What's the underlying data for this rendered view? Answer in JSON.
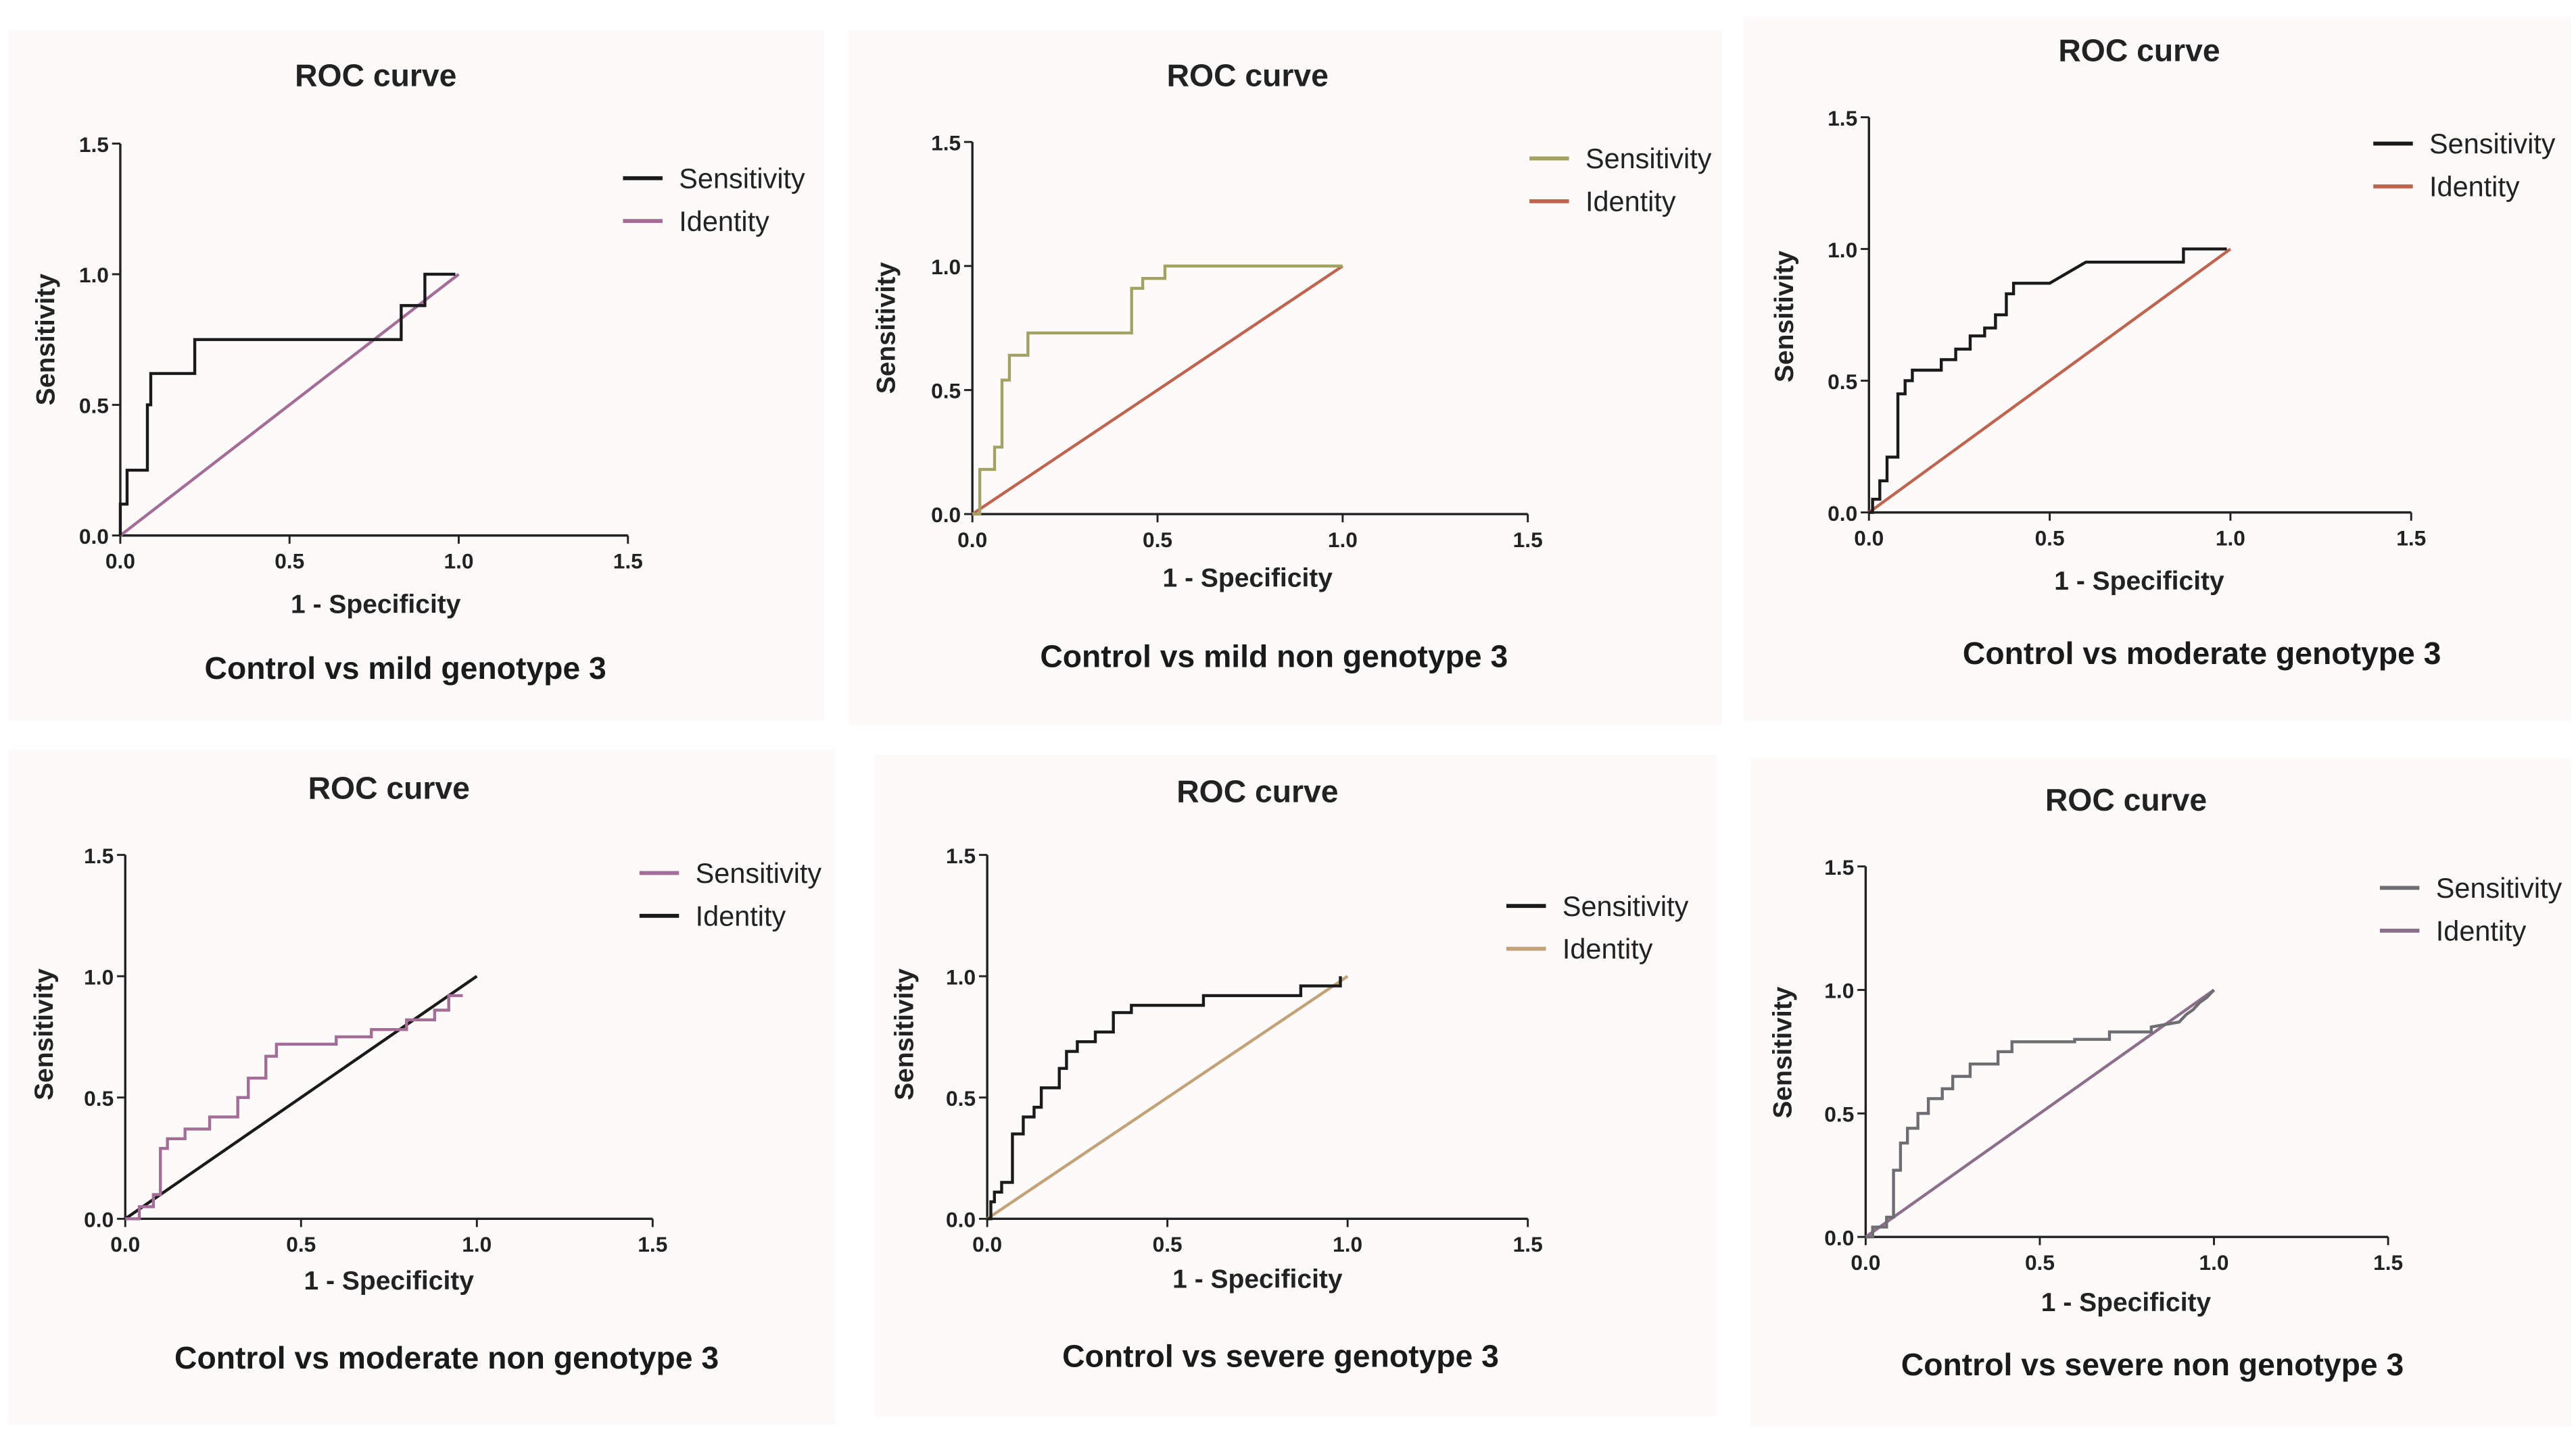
{
  "colors": {
    "black": "#1a1a1a",
    "olive": "#a2a263",
    "rust": "#c06450",
    "purple": "#a46d97",
    "mauve": "#8d6e8b",
    "tan": "#c4a277",
    "slate": "#6e6e72"
  },
  "chart_data": [
    {
      "type": "line",
      "title": "ROC curve",
      "xlabel": "1 - Specificity",
      "ylabel": "Sensitivity",
      "caption": "Control vs mild genotype 3",
      "xlim": [
        0,
        1.5
      ],
      "ylim": [
        0,
        1.5
      ],
      "xticks": [
        "0.0",
        "0.5",
        "1.0",
        "1.5"
      ],
      "yticks": [
        "0.0",
        "0.5",
        "1.0",
        "1.5"
      ],
      "legend_position": "top-right",
      "series": [
        {
          "name": "Sensitivity",
          "color": "#1a1a1a",
          "x": [
            0,
            0,
            0.02,
            0.02,
            0.08,
            0.08,
            0.09,
            0.09,
            0.22,
            0.22,
            0.83,
            0.83,
            0.85,
            0.85,
            0.9,
            0.9,
            0.99,
            0.99
          ],
          "y": [
            0,
            0.12,
            0.12,
            0.25,
            0.25,
            0.5,
            0.5,
            0.62,
            0.62,
            0.75,
            0.75,
            0.88,
            0.88,
            0.88,
            0.88,
            1.0,
            1.0,
            1.0
          ]
        },
        {
          "name": "Identity",
          "color": "#a46d97",
          "x": [
            0,
            1
          ],
          "y": [
            0,
            1
          ]
        }
      ]
    },
    {
      "type": "line",
      "title": "ROC curve",
      "xlabel": "1 - Specificity",
      "ylabel": "Sensitivity",
      "caption": "Control vs mild non genotype 3",
      "xlim": [
        0,
        1.5
      ],
      "ylim": [
        0,
        1.5
      ],
      "xticks": [
        "0.0",
        "0.5",
        "1.0",
        "1.5"
      ],
      "yticks": [
        "0.0",
        "0.5",
        "1.0",
        "1.5"
      ],
      "legend_position": "top-right",
      "series": [
        {
          "name": "Sensitivity",
          "color": "#a2a263",
          "x": [
            0,
            0.02,
            0.02,
            0.06,
            0.06,
            0.08,
            0.08,
            0.1,
            0.1,
            0.15,
            0.15,
            0.24,
            0.24,
            0.43,
            0.43,
            0.46,
            0.46,
            0.52,
            0.52,
            1.0
          ],
          "y": [
            0,
            0,
            0.18,
            0.18,
            0.27,
            0.27,
            0.54,
            0.54,
            0.64,
            0.64,
            0.73,
            0.73,
            0.73,
            0.73,
            0.91,
            0.91,
            0.95,
            0.95,
            1.0,
            1.0
          ]
        },
        {
          "name": "Identity",
          "color": "#c06450",
          "x": [
            0,
            1
          ],
          "y": [
            0,
            1
          ]
        }
      ]
    },
    {
      "type": "line",
      "title": "ROC curve",
      "xlabel": "1 - Specificity",
      "ylabel": "Sensitivity",
      "caption": "Control vs moderate genotype 3",
      "xlim": [
        0,
        1.5
      ],
      "ylim": [
        0,
        1.5
      ],
      "xticks": [
        "0.0",
        "0.5",
        "1.0",
        "1.5"
      ],
      "yticks": [
        "0.0",
        "0.5",
        "1.0",
        "1.5"
      ],
      "legend_position": "top-right",
      "series": [
        {
          "name": "Sensitivity",
          "color": "#1a1a1a",
          "x": [
            0,
            0.01,
            0.01,
            0.03,
            0.03,
            0.05,
            0.05,
            0.08,
            0.08,
            0.1,
            0.1,
            0.12,
            0.12,
            0.2,
            0.2,
            0.24,
            0.24,
            0.28,
            0.28,
            0.32,
            0.32,
            0.35,
            0.35,
            0.38,
            0.38,
            0.4,
            0.4,
            0.5,
            0.55,
            0.6,
            0.87,
            0.87,
            0.99
          ],
          "y": [
            0,
            0,
            0.05,
            0.05,
            0.12,
            0.12,
            0.21,
            0.21,
            0.45,
            0.45,
            0.5,
            0.5,
            0.54,
            0.54,
            0.58,
            0.58,
            0.62,
            0.62,
            0.67,
            0.67,
            0.7,
            0.7,
            0.75,
            0.75,
            0.83,
            0.83,
            0.87,
            0.87,
            0.91,
            0.95,
            0.95,
            1.0,
            1.0
          ]
        },
        {
          "name": "Identity",
          "color": "#c06450",
          "x": [
            0,
            1
          ],
          "y": [
            0,
            1
          ]
        }
      ]
    },
    {
      "type": "line",
      "title": "ROC curve",
      "xlabel": "1 - Specificity",
      "ylabel": "Sensitivity",
      "caption": "Control vs moderate non genotype 3",
      "xlim": [
        0,
        1.5
      ],
      "ylim": [
        0,
        1.5
      ],
      "xticks": [
        "0.0",
        "0.5",
        "1.0",
        "1.5"
      ],
      "yticks": [
        "0.0",
        "0.5",
        "1.0",
        "1.5"
      ],
      "legend_position": "top-right",
      "series": [
        {
          "name": "Sensitivity",
          "color": "#a46d97",
          "x": [
            0,
            0.04,
            0.04,
            0.08,
            0.08,
            0.1,
            0.1,
            0.12,
            0.12,
            0.17,
            0.17,
            0.24,
            0.24,
            0.32,
            0.32,
            0.35,
            0.35,
            0.4,
            0.4,
            0.43,
            0.43,
            0.6,
            0.6,
            0.7,
            0.7,
            0.8,
            0.8,
            0.88,
            0.88,
            0.92,
            0.92,
            0.96
          ],
          "y": [
            0,
            0,
            0.05,
            0.05,
            0.1,
            0.1,
            0.29,
            0.29,
            0.33,
            0.33,
            0.37,
            0.37,
            0.42,
            0.42,
            0.5,
            0.5,
            0.58,
            0.58,
            0.67,
            0.67,
            0.72,
            0.72,
            0.75,
            0.75,
            0.78,
            0.78,
            0.82,
            0.82,
            0.86,
            0.86,
            0.92,
            0.92
          ]
        },
        {
          "name": "Identity",
          "color": "#1a1a1a",
          "x": [
            0,
            1
          ],
          "y": [
            0,
            1
          ]
        }
      ]
    },
    {
      "type": "line",
      "title": "ROC curve",
      "xlabel": "1 - Specificity",
      "ylabel": "Sensitivity",
      "caption": "Control vs severe genotype 3",
      "xlim": [
        0,
        1.5
      ],
      "ylim": [
        0,
        1.5
      ],
      "xticks": [
        "0.0",
        "0.5",
        "1.0",
        "1.5"
      ],
      "yticks": [
        "0.0",
        "0.5",
        "1.0",
        "1.5"
      ],
      "legend_position": "top-right",
      "series": [
        {
          "name": "Sensitivity",
          "color": "#1a1a1a",
          "x": [
            0,
            0.01,
            0.01,
            0.02,
            0.02,
            0.04,
            0.04,
            0.07,
            0.07,
            0.1,
            0.1,
            0.13,
            0.13,
            0.15,
            0.15,
            0.2,
            0.2,
            0.22,
            0.22,
            0.25,
            0.25,
            0.3,
            0.3,
            0.35,
            0.35,
            0.4,
            0.4,
            0.6,
            0.6,
            0.87,
            0.87,
            0.98,
            0.98
          ],
          "y": [
            0,
            0,
            0.07,
            0.07,
            0.11,
            0.11,
            0.15,
            0.15,
            0.35,
            0.35,
            0.42,
            0.42,
            0.46,
            0.46,
            0.54,
            0.54,
            0.62,
            0.62,
            0.69,
            0.69,
            0.73,
            0.73,
            0.77,
            0.77,
            0.85,
            0.85,
            0.88,
            0.88,
            0.92,
            0.92,
            0.96,
            0.96,
            1.0
          ]
        },
        {
          "name": "Identity",
          "color": "#c4a277",
          "x": [
            0,
            1
          ],
          "y": [
            0,
            1
          ]
        }
      ]
    },
    {
      "type": "line",
      "title": "ROC curve",
      "xlabel": "1 - Specificity",
      "ylabel": "Sensitivity",
      "caption": "Control vs severe non genotype 3",
      "xlim": [
        0,
        1.5
      ],
      "ylim": [
        0,
        1.5
      ],
      "xticks": [
        "0.0",
        "0.5",
        "1.0",
        "1.5"
      ],
      "yticks": [
        "0.0",
        "0.5",
        "1.0",
        "1.5"
      ],
      "legend_position": "top-right",
      "series": [
        {
          "name": "Sensitivity",
          "color": "#6e6e72",
          "x": [
            0,
            0.02,
            0.02,
            0.06,
            0.06,
            0.08,
            0.08,
            0.1,
            0.1,
            0.12,
            0.12,
            0.15,
            0.15,
            0.18,
            0.18,
            0.22,
            0.22,
            0.25,
            0.25,
            0.3,
            0.3,
            0.38,
            0.38,
            0.42,
            0.42,
            0.6,
            0.6,
            0.7,
            0.7,
            0.82,
            0.82,
            0.9,
            0.92,
            0.94,
            0.96,
            0.98,
            1.0
          ],
          "y": [
            0,
            0,
            0.04,
            0.04,
            0.08,
            0.08,
            0.27,
            0.27,
            0.38,
            0.38,
            0.44,
            0.44,
            0.5,
            0.5,
            0.56,
            0.56,
            0.6,
            0.6,
            0.65,
            0.65,
            0.7,
            0.7,
            0.75,
            0.75,
            0.79,
            0.79,
            0.8,
            0.8,
            0.83,
            0.83,
            0.85,
            0.87,
            0.9,
            0.92,
            0.95,
            0.97,
            1.0
          ]
        },
        {
          "name": "Identity",
          "color": "#8d6e8b",
          "x": [
            0,
            1
          ],
          "y": [
            0,
            1
          ]
        }
      ]
    }
  ]
}
